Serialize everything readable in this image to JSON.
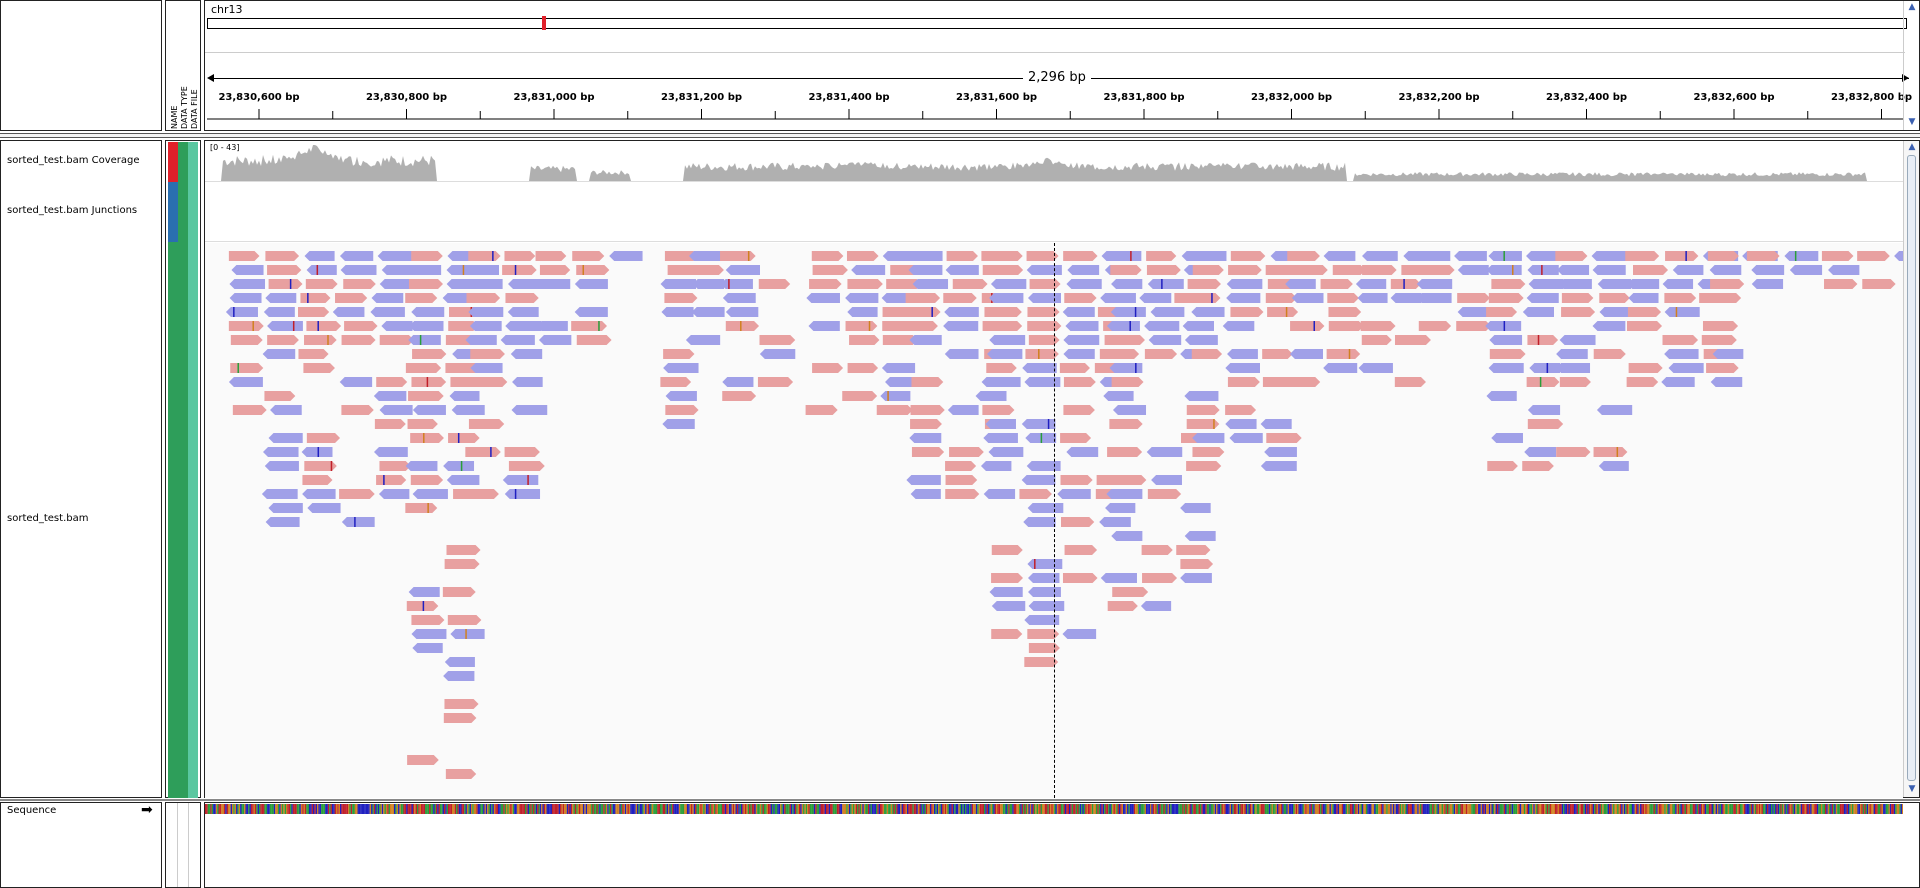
{
  "ruler": {
    "chromosome": "chr13",
    "span_label": "2,296 bp",
    "ticks": [
      {
        "pos": 23830600,
        "label": "23,830,600 bp"
      },
      {
        "pos": 23830800,
        "label": "23,830,800 bp"
      },
      {
        "pos": 23831000,
        "label": "23,831,000 bp"
      },
      {
        "pos": 23831200,
        "label": "23,831,200 bp"
      },
      {
        "pos": 23831400,
        "label": "23,831,400 bp"
      },
      {
        "pos": 23831600,
        "label": "23,831,600 bp"
      },
      {
        "pos": 23831800,
        "label": "23,831,800 bp"
      },
      {
        "pos": 23832000,
        "label": "23,832,000 bp"
      },
      {
        "pos": 23832200,
        "label": "23,832,200 bp"
      },
      {
        "pos": 23832400,
        "label": "23,832,400 bp"
      },
      {
        "pos": 23832600,
        "label": "23,832,600 bp"
      },
      {
        "pos": 23832800,
        "label": "23,832,800 bp"
      }
    ]
  },
  "attribute_headers": [
    "NAME",
    "DATA TYPE",
    "DATA FILE"
  ],
  "tracks": {
    "coverage": {
      "name": "sorted_test.bam Coverage",
      "range_label": "[0 - 43]"
    },
    "junctions": {
      "name": "sorted_test.bam Junctions"
    },
    "alignments": {
      "name": "sorted_test.bam"
    },
    "sequence": {
      "name": "Sequence"
    }
  },
  "colors": {
    "forward_read": "#e8a0a0",
    "reverse_read": "#a0a0e8",
    "coverage": "#b0b0b0",
    "attr_red": "#e0202a",
    "attr_blue": "#2a6fb0",
    "attr_green": "#2e9e5a",
    "attr_teal": "#5ac7a0",
    "chrom_marker": "#e0202a"
  }
}
